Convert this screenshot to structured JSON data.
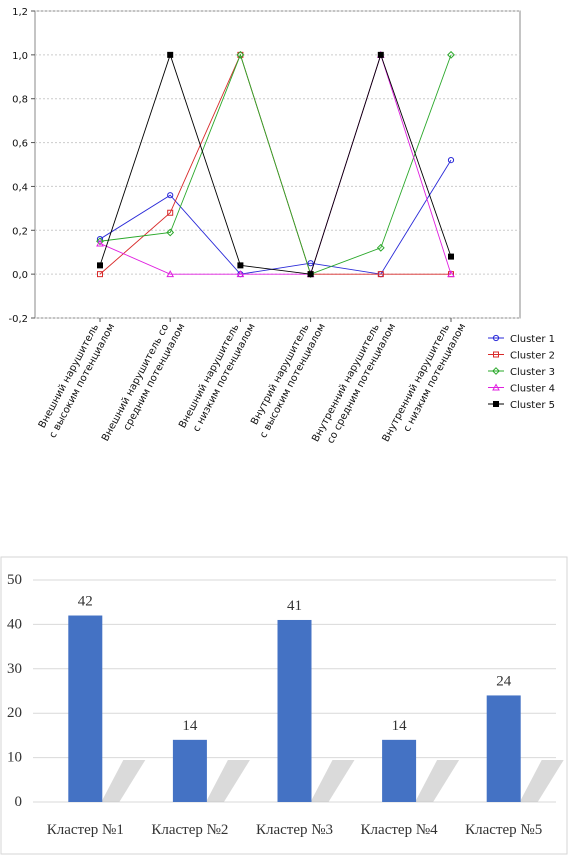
{
  "chart_data": [
    {
      "type": "line",
      "categories": [
        "Внешний нарушитель\nс высоким потенциалом",
        "Внешний нарушитель со\nсредним потенциалом",
        "Внешний нарушитель\nс низким потенциалом",
        "Внутрий нарушитель\nс высоким потенциалом",
        "Внутренний нарушитель\nсо средним потенциалом",
        "Внутренний нарушитель\nс низким потенциалом"
      ],
      "ylim": [
        -0.2,
        1.2
      ],
      "yticks": [
        {
          "value": -0.2,
          "label": "-0,2"
        },
        {
          "value": 0,
          "label": "0,0"
        },
        {
          "value": 0.2,
          "label": "0,2"
        },
        {
          "value": 0.4,
          "label": "0,4"
        },
        {
          "value": 0.6,
          "label": "0,6"
        },
        {
          "value": 0.8,
          "label": "0,8"
        },
        {
          "value": 1.0,
          "label": "1,0"
        },
        {
          "value": 1.2,
          "label": "1,2"
        }
      ],
      "grid": true,
      "legend": "right",
      "series": [
        {
          "name": "Cluster  1",
          "color": "#2a2ad8",
          "marker": "circle",
          "values": [
            0.16,
            0.36,
            0.0,
            0.05,
            0.0,
            0.52
          ]
        },
        {
          "name": "Cluster  2",
          "color": "#d82a2a",
          "marker": "square",
          "values": [
            0.0,
            0.28,
            1.0,
            0.0,
            0.0,
            0.0
          ]
        },
        {
          "name": "Cluster  3",
          "color": "#2aa82a",
          "marker": "diamond",
          "values": [
            0.15,
            0.19,
            1.0,
            0.0,
            0.12,
            1.0
          ]
        },
        {
          "name": "Cluster  4",
          "color": "#e020e0",
          "marker": "triangle",
          "values": [
            0.14,
            0.0,
            0.0,
            0.0,
            1.0,
            0.0
          ]
        },
        {
          "name": "Cluster  5",
          "color": "#000000",
          "marker": "filled-square",
          "values": [
            0.04,
            1.0,
            0.04,
            0.0,
            1.0,
            0.08
          ]
        }
      ]
    },
    {
      "type": "bar",
      "categories": [
        "Кластер №1",
        "Кластер №2",
        "Кластер №3",
        "Кластер №4",
        "Кластер №5"
      ],
      "values": [
        42,
        14,
        41,
        14,
        24
      ],
      "color": "#4472c4",
      "ylim": [
        0,
        50
      ],
      "yticks": [
        0,
        10,
        20,
        30,
        40,
        50
      ],
      "grid": true,
      "data_labels": true
    }
  ]
}
